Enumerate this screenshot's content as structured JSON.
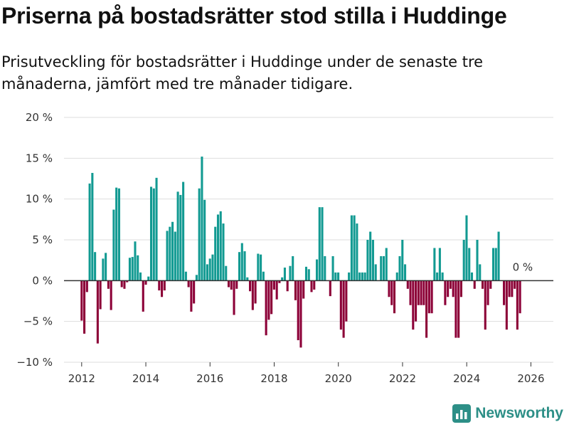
{
  "chart_data": {
    "type": "bar",
    "title": "Priserna på bostadsrätter stod stilla i Huddinge",
    "subtitle": "Prisutveckling för bostadsrätter i Huddinge under de senaste tre månaderna, jämfört med tre månader tidigare.",
    "xlabel": "",
    "ylabel": "",
    "ylim": [
      -10,
      20
    ],
    "xlim": [
      2011.45,
      2026.7
    ],
    "y_ticks": [
      -10,
      -5,
      0,
      5,
      10,
      15,
      20
    ],
    "y_tick_labels": [
      "−10 %",
      "−5 %",
      "0 %",
      "5 %",
      "10 %",
      "15 %",
      "20 %"
    ],
    "x_ticks": [
      2012,
      2014,
      2016,
      2018,
      2020,
      2022,
      2024,
      2026
    ],
    "x_tick_labels": [
      "2012",
      "2014",
      "2016",
      "2018",
      "2020",
      "2022",
      "2024",
      "2026"
    ],
    "start_year": 2012.0,
    "step_years": 0.0833,
    "positive_color": "#129a92",
    "negative_color": "#8c0037",
    "last_label": "0 %",
    "series": [
      {
        "name": "Prisutveckling",
        "values": [
          -4.9,
          -6.5,
          -1.4,
          11.9,
          13.2,
          3.5,
          -7.7,
          -3.5,
          2.7,
          3.4,
          -1.0,
          -3.6,
          8.7,
          11.4,
          11.3,
          -0.8,
          -1.0,
          -0.2,
          2.8,
          2.9,
          4.8,
          3.1,
          1.0,
          -3.8,
          -0.5,
          0.5,
          11.5,
          11.3,
          12.6,
          -1.2,
          -2.0,
          -1.2,
          6.1,
          6.6,
          7.2,
          6.0,
          10.9,
          10.5,
          12.1,
          1.1,
          -0.8,
          -3.8,
          -2.8,
          0.7,
          11.3,
          15.2,
          9.9,
          2.0,
          2.7,
          3.2,
          6.6,
          8.1,
          8.5,
          7.0,
          1.8,
          -0.8,
          -1.1,
          -4.2,
          -1.0,
          3.5,
          4.6,
          3.6,
          0.4,
          -1.3,
          -3.6,
          -2.8,
          3.3,
          3.2,
          1.1,
          -6.7,
          -4.8,
          -4.1,
          -1.1,
          -2.3,
          -0.3,
          0.4,
          1.6,
          -1.3,
          1.8,
          3.0,
          -2.4,
          -7.3,
          -8.2,
          -2.2,
          1.7,
          1.4,
          -1.4,
          -1.1,
          2.6,
          9.0,
          9.0,
          3.0,
          0.0,
          -1.9,
          3.0,
          1.0,
          1.0,
          -6.0,
          -7.0,
          -5.0,
          1.0,
          8.0,
          8.0,
          7.0,
          1.0,
          1.0,
          1.0,
          5.0,
          6.0,
          5.0,
          2.0,
          0.0,
          3.0,
          3.0,
          4.0,
          -2.0,
          -3.0,
          -4.0,
          1.0,
          3.0,
          5.0,
          2.0,
          -1.0,
          -3.0,
          -6.0,
          -5.0,
          -3.0,
          -3.0,
          -3.0,
          -7.0,
          -4.0,
          -4.0,
          4.0,
          1.0,
          4.0,
          1.0,
          -3.0,
          -2.0,
          -1.0,
          -2.0,
          -7.0,
          -7.0,
          -2.0,
          5.0,
          8.0,
          4.0,
          1.0,
          -1.0,
          5.0,
          2.0,
          -1.0,
          -6.0,
          -3.0,
          -1.0,
          4.0,
          4.0,
          6.0,
          0.0,
          -3.0,
          -6.0,
          -2.0,
          -2.0,
          -1.0,
          -6.0,
          -4.0,
          0.0
        ]
      }
    ]
  },
  "logo": {
    "text": "Newsworthy",
    "icon": "bar-chart-logo-icon"
  }
}
